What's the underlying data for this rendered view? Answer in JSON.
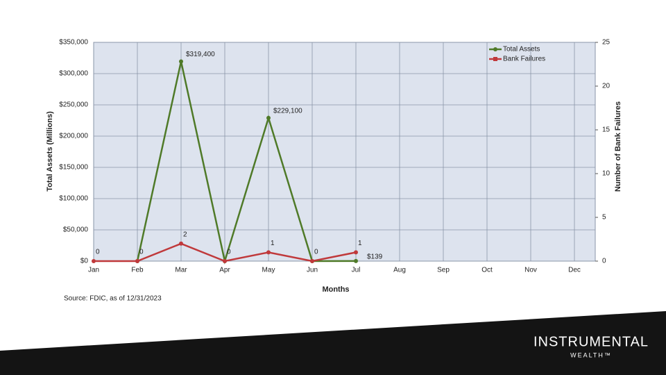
{
  "chart_data": {
    "type": "line",
    "categories": [
      "Jan",
      "Feb",
      "Mar",
      "Apr",
      "May",
      "Jun",
      "Jul",
      "Aug",
      "Sep",
      "Oct",
      "Nov",
      "Dec"
    ],
    "series": [
      {
        "name": "Total Assets",
        "color": "#4f7a28",
        "values": [
          null,
          0,
          319400,
          0,
          229100,
          0,
          139,
          null,
          null,
          null,
          null,
          null
        ],
        "value_labels": [
          null,
          null,
          "$319,400",
          null,
          "$229,100",
          null,
          "$139",
          null,
          null,
          null,
          null,
          null
        ]
      },
      {
        "name": "Bank Failures",
        "color": "#c0393b",
        "axis": "y2",
        "values": [
          0,
          0,
          2,
          0,
          1,
          0,
          1,
          null,
          null,
          null,
          null,
          null
        ]
      }
    ],
    "ylim": [
      0,
      350000
    ],
    "yticks": [
      {
        "value": 0,
        "label": "$0"
      },
      {
        "value": 50000,
        "label": "$50,000"
      },
      {
        "value": 100000,
        "label": "$100,000"
      },
      {
        "value": 150000,
        "label": "$150,000"
      },
      {
        "value": 200000,
        "label": "$200,000"
      },
      {
        "value": 250000,
        "label": "$250,000"
      },
      {
        "value": 300000,
        "label": "$300,000"
      },
      {
        "value": 350000,
        "label": "$350,000"
      }
    ],
    "y2lim": [
      0,
      25
    ],
    "y2ticks": [
      0,
      5,
      10,
      15,
      20,
      25
    ],
    "ylabel": "Total Assets (Millions)",
    "y2label": "Number of Bank Failures",
    "xlabel": "Months",
    "grid": true,
    "legend": "top-right",
    "source": "Source: FDIC, as of 12/31/2023"
  },
  "logo": {
    "name": "INSTRUMENTAL",
    "tagline": "WEALTH™"
  }
}
